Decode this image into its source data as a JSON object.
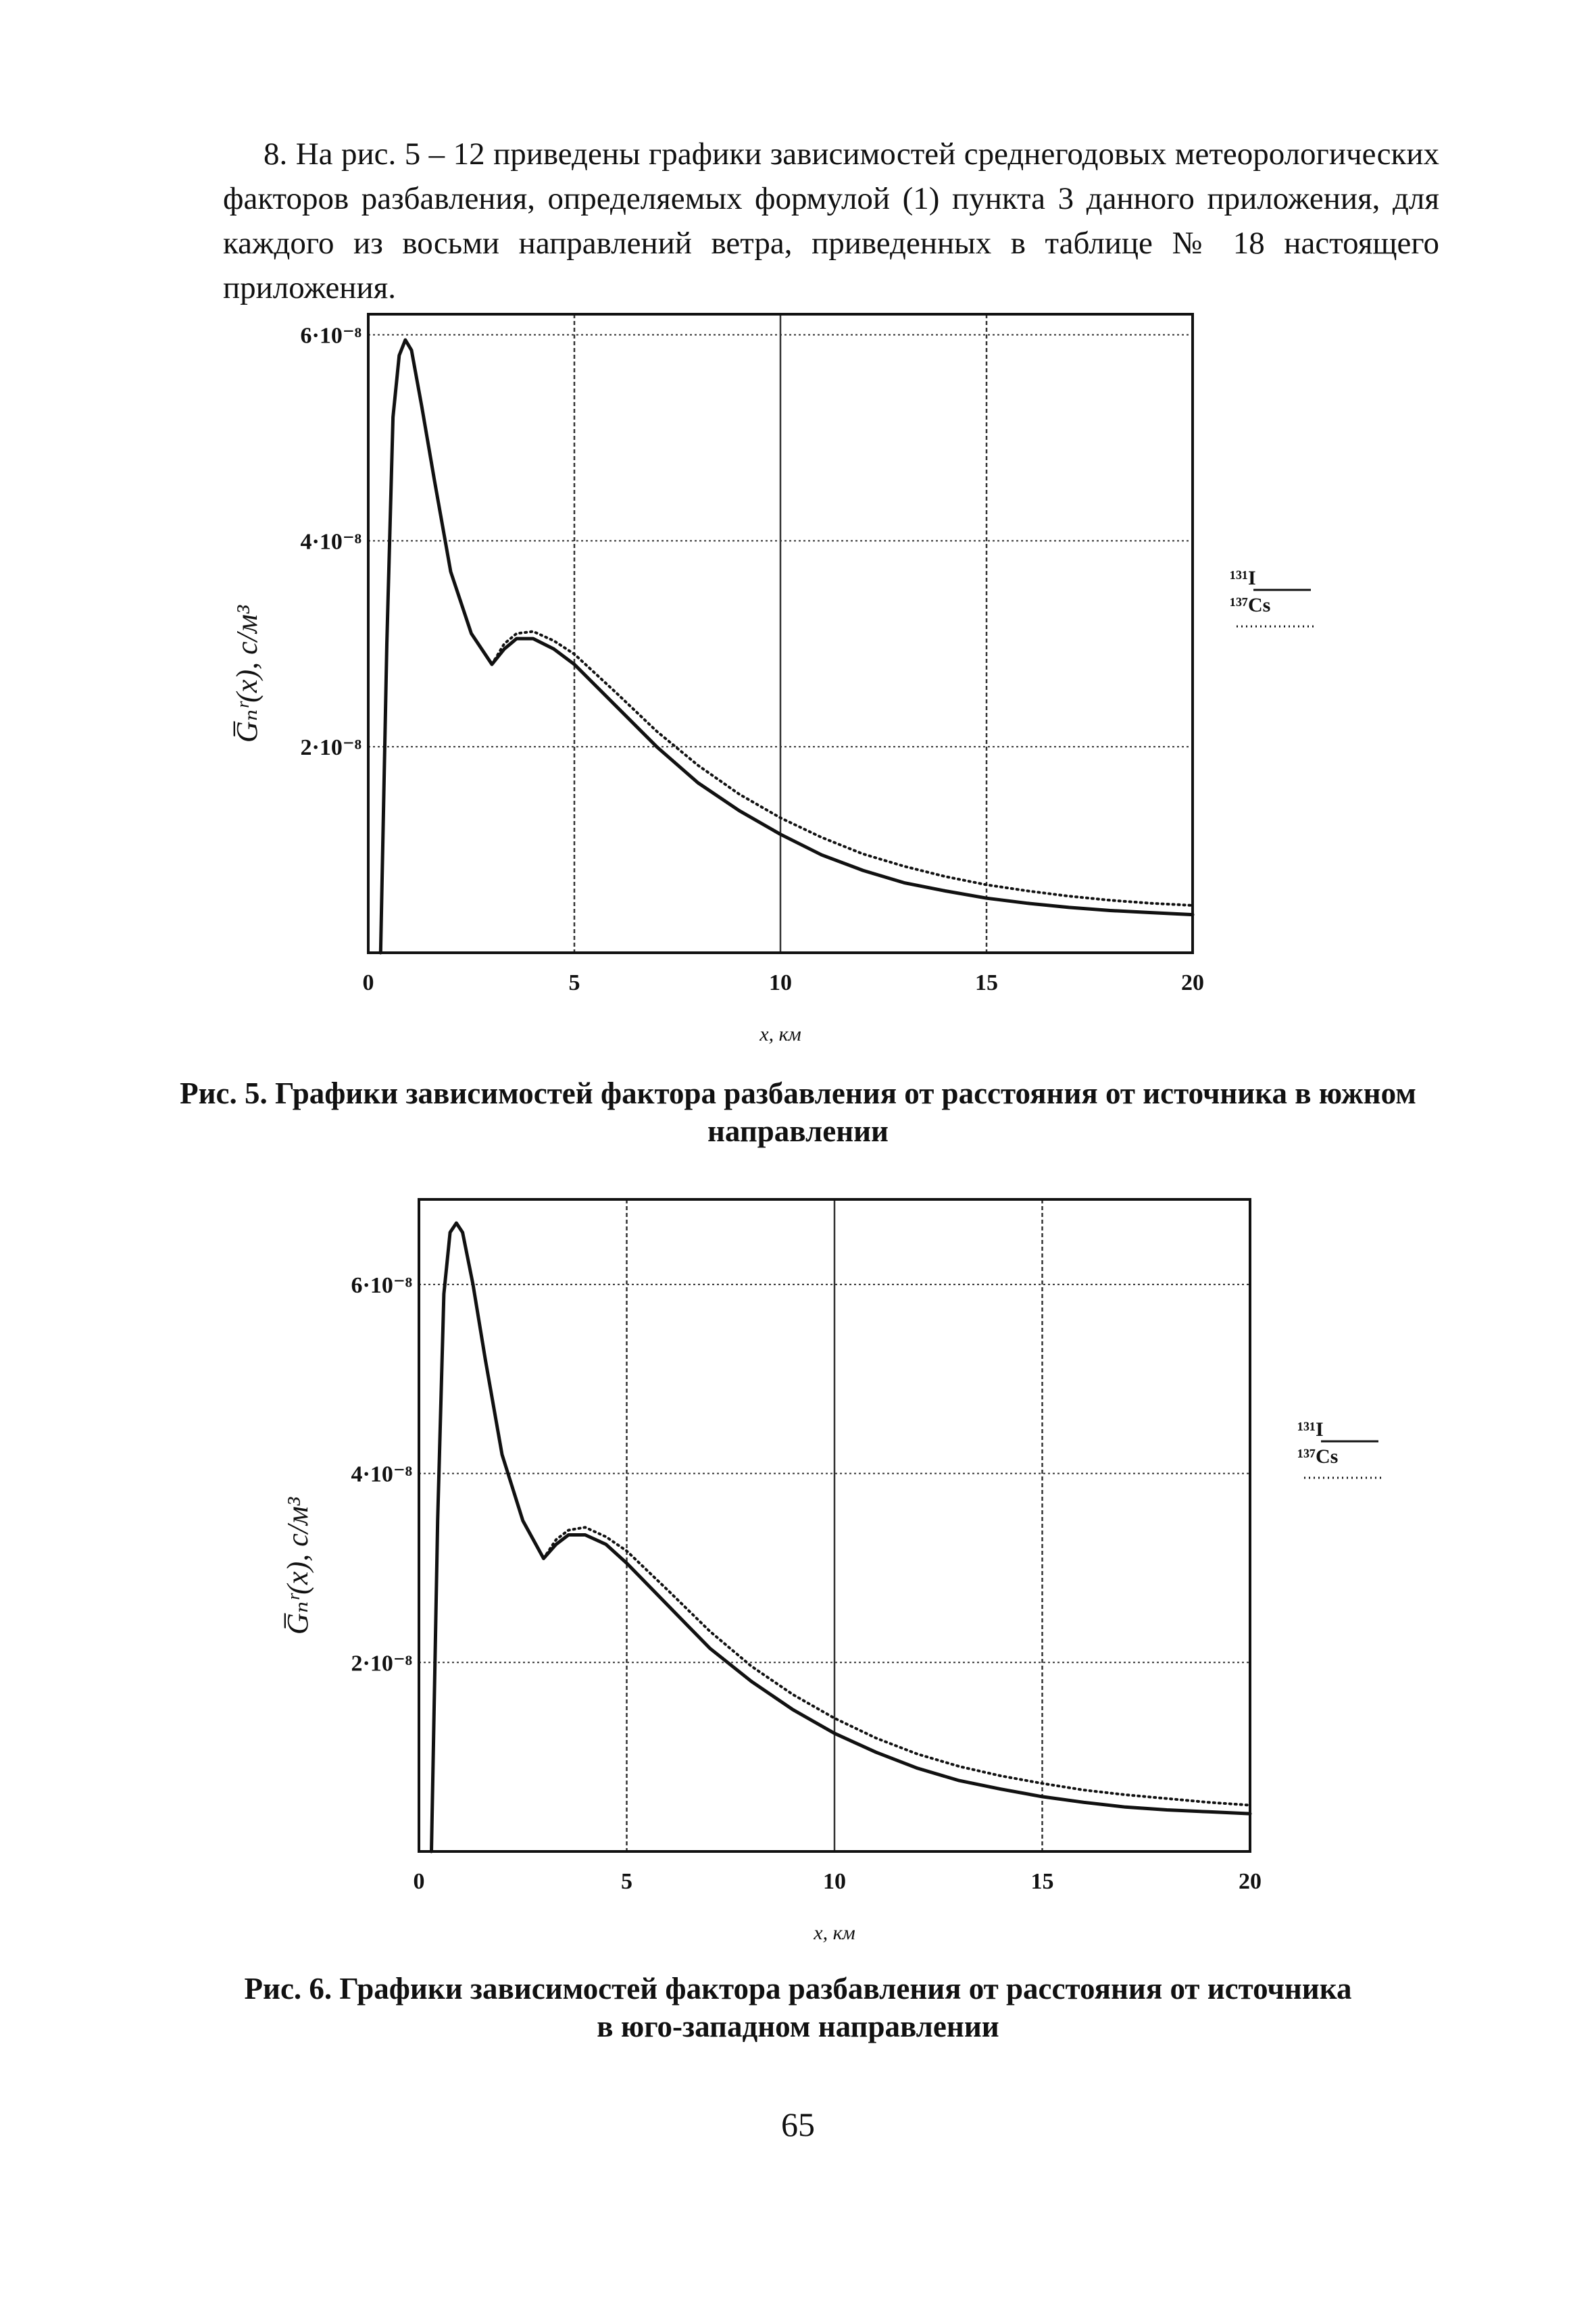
{
  "paragraph": "8. На рис. 5 – 12 приведены графики зависимостей среднегодовых метеорологических факторов разбавления, определяемых формулой (1) пункта 3 данного приложения, для каждого из восьми направлений ветра, приведенных в таблице № 18 настоящего приложения.",
  "figures": [
    {
      "caption_line1": "Рис. 5. Графики зависимостей фактора разбавления от расстояния от источника в южном",
      "caption_line2": "направлении",
      "ylabel": "G̅ₙʳ(x), с/м³",
      "xlabel": "x, км",
      "legend": {
        "line1": "¹³¹I",
        "line2": "¹³⁷Cs"
      }
    },
    {
      "caption_line1": "Рис. 6. Графики зависимостей фактора разбавления от расстояния от источника",
      "caption_line2": "в юго-западном направлении",
      "ylabel": "G̅ₙʳ(x), с/м³",
      "xlabel": "x, км",
      "legend": {
        "line1": "¹³¹I",
        "line2": "¹³⁷Cs"
      }
    }
  ],
  "chart_data": [
    {
      "type": "line",
      "xlabel": "x, км",
      "ylabel": "G̅ₙʳ(x), с/м³",
      "xlim": [
        0,
        20
      ],
      "ylim": [
        0,
        6.2e-08
      ],
      "x_ticks": [
        "0",
        "5",
        "10",
        "15",
        "20"
      ],
      "y_ticks": [
        {
          "label": "2·10⁻⁸",
          "value": 2e-08
        },
        {
          "label": "4·10⁻⁸",
          "value": 4e-08
        },
        {
          "label": "6·10⁻⁸",
          "value": 6e-08
        }
      ],
      "grid": true,
      "legend": "right",
      "series": [
        {
          "name": "¹³¹I",
          "style": "solid",
          "x": [
            0.3,
            0.45,
            0.6,
            0.75,
            0.9,
            1.05,
            1.3,
            1.6,
            2.0,
            2.5,
            3.0,
            3.3,
            3.6,
            4.0,
            4.5,
            5.0,
            6.0,
            7.0,
            8.0,
            9.0,
            10.0,
            11.0,
            12.0,
            13.0,
            14.0,
            15.0,
            16.0,
            17.0,
            18.0,
            19.0,
            20.0
          ],
          "values": [
            0,
            3e-08,
            5.2e-08,
            5.8e-08,
            5.95e-08,
            5.85e-08,
            5.3e-08,
            4.6e-08,
            3.7e-08,
            3.1e-08,
            2.8e-08,
            2.95e-08,
            3.05e-08,
            3.05e-08,
            2.95e-08,
            2.8e-08,
            2.4e-08,
            2e-08,
            1.65e-08,
            1.38e-08,
            1.15e-08,
            9.5e-09,
            8e-09,
            6.8e-09,
            6e-09,
            5.3e-09,
            4.8e-09,
            4.4e-09,
            4.1e-09,
            3.9e-09,
            3.7e-09
          ]
        },
        {
          "name": "¹³⁷Cs",
          "style": "dotted",
          "x": [
            3.0,
            3.3,
            3.6,
            4.0,
            4.5,
            5.0,
            6.0,
            7.0,
            8.0,
            9.0,
            10.0,
            11.0,
            12.0,
            13.0,
            14.0,
            15.0,
            16.0,
            17.0,
            18.0,
            19.0,
            20.0
          ],
          "values": [
            2.8e-08,
            3e-08,
            3.1e-08,
            3.12e-08,
            3.03e-08,
            2.9e-08,
            2.53e-08,
            2.15e-08,
            1.82e-08,
            1.54e-08,
            1.31e-08,
            1.12e-08,
            9.6e-09,
            8.4e-09,
            7.4e-09,
            6.6e-09,
            6e-09,
            5.5e-09,
            5.1e-09,
            4.8e-09,
            4.6e-09
          ]
        }
      ]
    },
    {
      "type": "line",
      "xlabel": "x, км",
      "ylabel": "G̅ₙʳ(x), с/м³",
      "xlim": [
        0,
        20
      ],
      "ylim": [
        0,
        6.9e-08
      ],
      "x_ticks": [
        "0",
        "5",
        "10",
        "15",
        "20"
      ],
      "y_ticks": [
        {
          "label": "2·10⁻⁸",
          "value": 2e-08
        },
        {
          "label": "4·10⁻⁸",
          "value": 4e-08
        },
        {
          "label": "6·10⁻⁸",
          "value": 6e-08
        }
      ],
      "grid": true,
      "legend": "right",
      "series": [
        {
          "name": "¹³¹I",
          "style": "solid",
          "x": [
            0.3,
            0.45,
            0.6,
            0.75,
            0.9,
            1.05,
            1.3,
            1.6,
            2.0,
            2.5,
            3.0,
            3.3,
            3.6,
            4.0,
            4.5,
            5.0,
            6.0,
            7.0,
            8.0,
            9.0,
            10.0,
            11.0,
            12.0,
            13.0,
            14.0,
            15.0,
            16.0,
            17.0,
            18.0,
            19.0,
            20.0
          ],
          "values": [
            0,
            3.5e-08,
            5.9e-08,
            6.55e-08,
            6.65e-08,
            6.55e-08,
            6e-08,
            5.2e-08,
            4.2e-08,
            3.5e-08,
            3.1e-08,
            3.25e-08,
            3.35e-08,
            3.35e-08,
            3.25e-08,
            3.05e-08,
            2.6e-08,
            2.15e-08,
            1.8e-08,
            1.5e-08,
            1.25e-08,
            1.05e-08,
            8.8e-09,
            7.5e-09,
            6.6e-09,
            5.8e-09,
            5.2e-09,
            4.7e-09,
            4.4e-09,
            4.2e-09,
            4e-09
          ]
        },
        {
          "name": "¹³⁷Cs",
          "style": "dotted",
          "x": [
            3.0,
            3.3,
            3.6,
            4.0,
            4.5,
            5.0,
            6.0,
            7.0,
            8.0,
            9.0,
            10.0,
            11.0,
            12.0,
            13.0,
            14.0,
            15.0,
            16.0,
            17.0,
            18.0,
            19.0,
            20.0
          ],
          "values": [
            3.1e-08,
            3.3e-08,
            3.4e-08,
            3.43e-08,
            3.33e-08,
            3.18e-08,
            2.76e-08,
            2.33e-08,
            1.96e-08,
            1.66e-08,
            1.41e-08,
            1.2e-08,
            1.03e-08,
            9e-09,
            8e-09,
            7.2e-09,
            6.5e-09,
            6e-09,
            5.6e-09,
            5.2e-09,
            4.9e-09
          ]
        }
      ]
    }
  ],
  "page_number": "65"
}
